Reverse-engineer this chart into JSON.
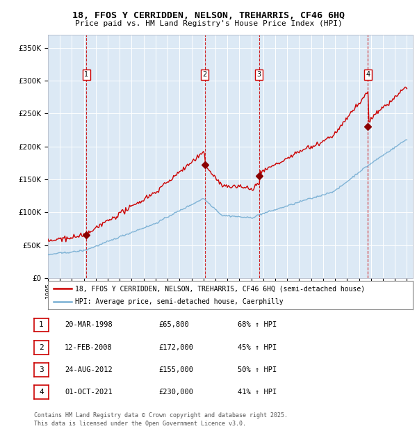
{
  "title": "18, FFOS Y CERRIDDEN, NELSON, TREHARRIS, CF46 6HQ",
  "subtitle": "Price paid vs. HM Land Registry's House Price Index (HPI)",
  "background_color": "#ffffff",
  "plot_bg_color": "#dce9f5",
  "grid_color": "#ffffff",
  "yticks": [
    0,
    50000,
    100000,
    150000,
    200000,
    250000,
    300000,
    350000
  ],
  "ytick_labels": [
    "£0",
    "£50K",
    "£100K",
    "£150K",
    "£200K",
    "£250K",
    "£300K",
    "£350K"
  ],
  "xlim_start": 1995.0,
  "xlim_end": 2025.5,
  "ylim": [
    0,
    370000
  ],
  "red_line_color": "#cc0000",
  "blue_line_color": "#7ab0d4",
  "marker_color": "#8b0000",
  "transaction_dates": [
    1998.22,
    2008.12,
    2012.65,
    2021.75
  ],
  "transaction_prices": [
    65800,
    172000,
    155000,
    230000
  ],
  "transaction_labels": [
    "1",
    "2",
    "3",
    "4"
  ],
  "legend_label_red": "18, FFOS Y CERRIDDEN, NELSON, TREHARRIS, CF46 6HQ (semi-detached house)",
  "legend_label_blue": "HPI: Average price, semi-detached house, Caerphilly",
  "table_entries": [
    {
      "num": "1",
      "date": "20-MAR-1998",
      "price": "£65,800",
      "hpi": "68% ↑ HPI"
    },
    {
      "num": "2",
      "date": "12-FEB-2008",
      "price": "£172,000",
      "hpi": "45% ↑ HPI"
    },
    {
      "num": "3",
      "date": "24-AUG-2012",
      "price": "£155,000",
      "hpi": "50% ↑ HPI"
    },
    {
      "num": "4",
      "date": "01-OCT-2021",
      "price": "£230,000",
      "hpi": "41% ↑ HPI"
    }
  ],
  "footer": "Contains HM Land Registry data © Crown copyright and database right 2025.\nThis data is licensed under the Open Government Licence v3.0.",
  "vline_color": "#cc0000"
}
